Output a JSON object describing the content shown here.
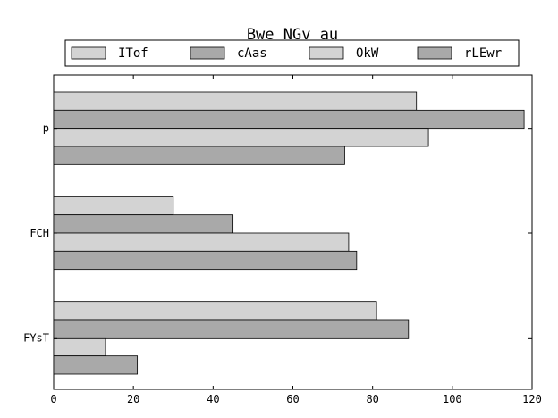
{
  "chart_data": {
    "type": "bar",
    "orientation": "horizontal",
    "title": "Bwe NGv au",
    "xlabel": "",
    "ylabel": "",
    "categories": [
      "p",
      "FCH",
      "FYsT"
    ],
    "series": [
      {
        "name": "ITof",
        "values": [
          91,
          30,
          81
        ],
        "color": "#d3d3d3"
      },
      {
        "name": "cAas",
        "values": [
          118,
          45,
          89
        ],
        "color": "#a9a9a9"
      },
      {
        "name": "OkW",
        "values": [
          94,
          74,
          13
        ],
        "color": "#d3d3d3"
      },
      {
        "name": "rLEwr",
        "values": [
          73,
          76,
          21
        ],
        "color": "#a9a9a9"
      }
    ],
    "xlim": [
      0,
      120
    ],
    "xticks": [
      0,
      20,
      40,
      60,
      80,
      100,
      120
    ],
    "grid": false,
    "legend_position": "top"
  }
}
